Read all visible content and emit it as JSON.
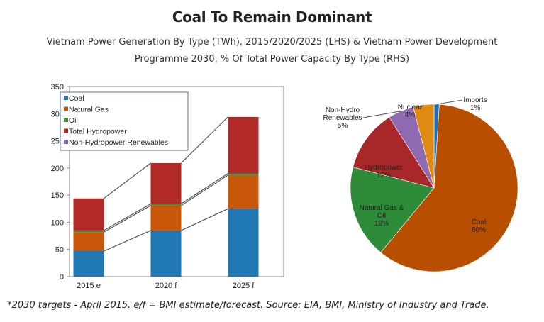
{
  "header": {
    "title": "Coal To Remain Dominant",
    "subtitle_line1": "Vietnam Power Generation By Type (TWh), 2015/2020/2025 (LHS) & Vietnam Power Development",
    "subtitle_line2": "Programme 2030, % Of Total Power Capacity By Type (RHS)"
  },
  "footer": {
    "note": "*2030 targets - April 2015. e/f = BMI estimate/forecast. Source: EIA, BMI, Ministry of Industry and Trade."
  },
  "chart_data": [
    {
      "type": "bar",
      "stacked": true,
      "title": "Vietnam Power Generation By Type (TWh)",
      "xlabel": "",
      "ylabel": "",
      "categories": [
        "2015 e",
        "2020 f",
        "2025 f"
      ],
      "ylim": [
        0,
        350
      ],
      "yticks": [
        0,
        50,
        100,
        150,
        200,
        250,
        300,
        350
      ],
      "legend_position": "top-left",
      "series": [
        {
          "name": "Coal",
          "color": "#1f77b4",
          "values": [
            47,
            85,
            125
          ]
        },
        {
          "name": "Natural Gas",
          "color": "#c9570a",
          "values": [
            35,
            46,
            62
          ]
        },
        {
          "name": "Oil",
          "color": "#3d8b37",
          "values": [
            3,
            3,
            3
          ]
        },
        {
          "name": "Total Hydropower",
          "color": "#b22a27",
          "values": [
            59,
            75,
            104
          ]
        },
        {
          "name": "Non-Hydropower Renewables",
          "color": "#8c6bb1",
          "values": [
            0,
            0,
            0
          ]
        }
      ]
    },
    {
      "type": "pie",
      "title": "Vietnam Power Development Programme 2030, % Of Total Power Capacity By Type",
      "slices": [
        {
          "label": "Imports",
          "value": 1,
          "display": "1%",
          "color": "#1f6fb4"
        },
        {
          "label": "Coal",
          "value": 60,
          "display": "60%",
          "color": "#b84e00"
        },
        {
          "label": "Natural Gas & Oil",
          "value": 18,
          "display": "18%",
          "color": "#2e8b3a"
        },
        {
          "label": "Hydropower",
          "value": 12,
          "display": "12%",
          "color": "#a8282a"
        },
        {
          "label": "Non-Hydro Renewables",
          "value": 5,
          "display": "5%",
          "color": "#8e6bb0"
        },
        {
          "label": "Nuclear",
          "value": 4,
          "display": "4%",
          "color": "#e08a14"
        }
      ]
    }
  ]
}
